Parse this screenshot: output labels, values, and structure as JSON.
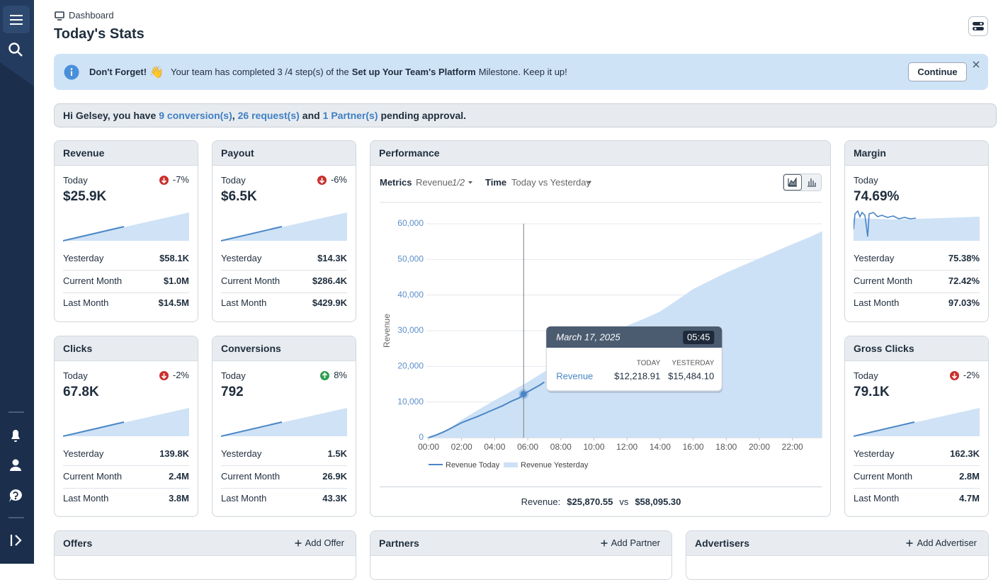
{
  "breadcrumb": "Dashboard",
  "title": "Today's Stats",
  "banner": {
    "heading": "Don't Forget!",
    "emoji": "👋",
    "text": "Your team has completed 3 /4 step(s) of the",
    "milestone": "Set up Your Team's Platform",
    "text_end": "Milestone. Keep it up!",
    "button": "Continue"
  },
  "greeting": [
    {
      "text": "Hi Gelsey, you have"
    },
    {
      "text": "9 conversion(s)",
      "link": true
    },
    {
      "text": ","
    },
    {
      "text": "26 request(s)",
      "link": true
    },
    {
      "text": "and"
    },
    {
      "text": "1 Partner(s)",
      "link": true
    },
    {
      "text": "pending approval."
    }
  ],
  "cards": [
    {
      "title": "Revenue",
      "today_label": "Today",
      "today": "$25.9K",
      "change": "-7%",
      "rows": [
        [
          "Yesterday",
          "$58.1K"
        ],
        [
          "Current Month",
          "$1.0M"
        ],
        [
          "Last Month",
          "$14.5M"
        ]
      ]
    },
    {
      "title": "Payout",
      "today_label": "Today",
      "today": "$6.5K",
      "change": "-6%",
      "rows": [
        [
          "Yesterday",
          "$14.3K"
        ],
        [
          "Current Month",
          "$286.4K"
        ],
        [
          "Last Month",
          "$429.9K"
        ]
      ]
    },
    {
      "title": "Margin",
      "today_label": "Today",
      "today": "74.69%",
      "rows": [
        [
          "Yesterday",
          "75.38%"
        ],
        [
          "Current Month",
          "72.42%"
        ],
        [
          "Last Month",
          "97.03%"
        ]
      ]
    },
    {
      "title": "Clicks",
      "today_label": "Today",
      "today": "67.8K",
      "change": "-2%",
      "rows": [
        [
          "Yesterday",
          "139.8K"
        ],
        [
          "Current Month",
          "2.4M"
        ],
        [
          "Last Month",
          "3.8M"
        ]
      ]
    },
    {
      "title": "Conversions",
      "today_label": "Today",
      "today": "792",
      "change": "8%",
      "rows": [
        [
          "Yesterday",
          "1.5K"
        ],
        [
          "Current Month",
          "26.9K"
        ],
        [
          "Last Month",
          "43.3K"
        ]
      ]
    },
    {
      "title": "Gross Clicks",
      "today_label": "Today",
      "today": "79.1K",
      "change": "-2%",
      "rows": [
        [
          "Yesterday",
          "162.3K"
        ],
        [
          "Current Month",
          "2.8M"
        ],
        [
          "Last Month",
          "4.7M"
        ]
      ]
    }
  ],
  "performance": {
    "title": "Performance",
    "metrics_label": "Metrics",
    "metric": "Revenue",
    "metric_page": "1/2",
    "time_label": "Time",
    "time": "Today vs Yesterday",
    "chart": {
      "type": "line",
      "ylabel": "Revenue",
      "grid": true,
      "xlim": [
        0,
        24
      ],
      "xticks": [
        {
          "value": 0,
          "label": "00:00"
        },
        {
          "value": 2,
          "label": "02:00"
        },
        {
          "value": 4,
          "label": "04:00"
        },
        {
          "value": 6,
          "label": "06:00"
        },
        {
          "value": 8,
          "label": "08:00"
        },
        {
          "value": 10,
          "label": "10:00"
        },
        {
          "value": 12,
          "label": "12:00"
        },
        {
          "value": 14,
          "label": "14:00"
        },
        {
          "value": 16,
          "label": "16:00"
        },
        {
          "value": 18,
          "label": "18:00"
        },
        {
          "value": 20,
          "label": "20:00"
        },
        {
          "value": 22,
          "label": "22:00"
        }
      ],
      "ylim": [
        0,
        60000
      ],
      "yticks": [
        0,
        {
          "value": 10000,
          "label": "10,000"
        },
        {
          "value": 20000,
          "label": "20,000"
        },
        {
          "value": 30000,
          "label": "30,000"
        },
        {
          "value": 40000,
          "label": "40,000"
        },
        {
          "value": 50000,
          "label": "50,000"
        },
        {
          "value": 60000,
          "label": "60,000"
        }
      ],
      "series": [
        {
          "name": "Revenue Yesterday",
          "type": "area",
          "color": "#cde1f6",
          "x": [
            0,
            1,
            2,
            3,
            4,
            5,
            6,
            7,
            8,
            9,
            10,
            11,
            12,
            13,
            14,
            15,
            16,
            17,
            18,
            19,
            20,
            21,
            22,
            23,
            23.8
          ],
          "values": [
            0,
            1600,
            5000,
            7800,
            10500,
            13000,
            15600,
            18500,
            21500,
            24500,
            27400,
            29500,
            31400,
            33300,
            35400,
            38500,
            41700,
            44000,
            46300,
            48300,
            50300,
            52300,
            54300,
            56200,
            57900
          ]
        },
        {
          "name": "Revenue Today",
          "type": "line",
          "color": "#4a86c5",
          "x": [
            0,
            0.5,
            1,
            1.5,
            2,
            2.5,
            3,
            3.5,
            4,
            4.5,
            5,
            5.5,
            5.75,
            6.25,
            6.75,
            7
          ],
          "values": [
            0,
            800,
            1800,
            3000,
            4200,
            5100,
            6000,
            7000,
            8000,
            9000,
            10200,
            11200,
            12219,
            13500,
            14800,
            15600
          ]
        }
      ],
      "tooltip": {
        "date": "March 17, 2025",
        "time": {
          "value": 5.75,
          "label": "05:45"
        },
        "columns": [
          "TODAY",
          "YESTERDAY"
        ],
        "row": "Revenue",
        "values": [
          "$12,218.91",
          "$15,484.10"
        ]
      }
    },
    "summary": {
      "label": "Revenue:",
      "today": "$25,870.55",
      "vs": "vs",
      "yesterday": "$58,095.30"
    }
  },
  "panels": [
    {
      "title": "Offers",
      "action": "Add Offer"
    },
    {
      "title": "Partners",
      "action": "Add Partner"
    },
    {
      "title": "Advertisers",
      "action": "Add Advertiser"
    }
  ]
}
